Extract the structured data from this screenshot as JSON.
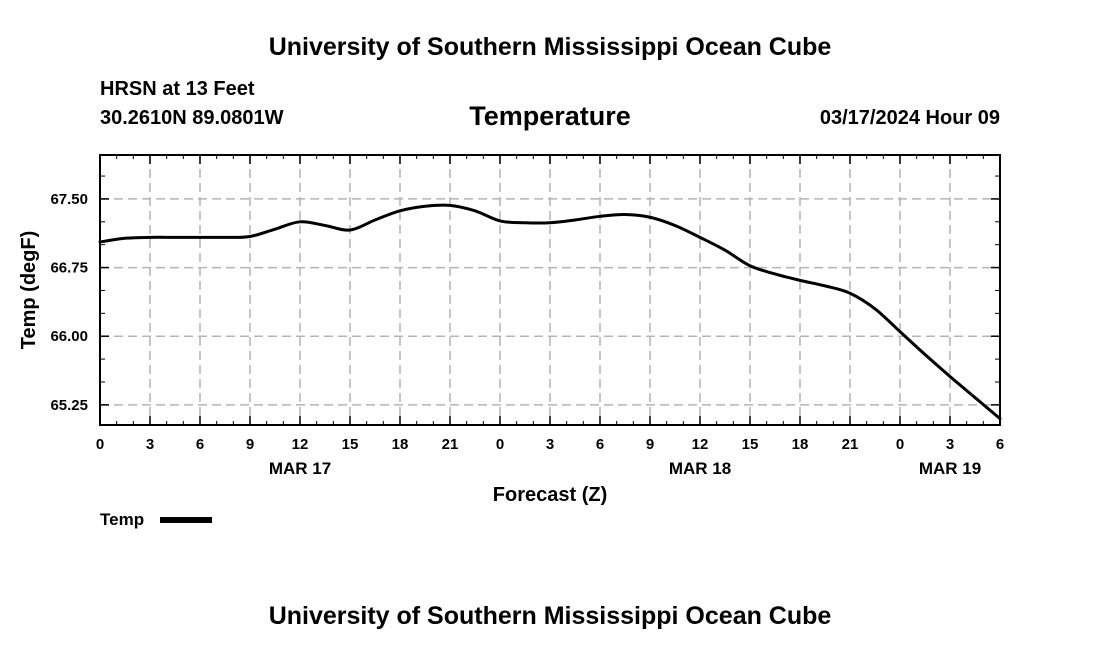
{
  "colors": {
    "background": "#ffffff",
    "line": "#000000",
    "grid": "#b4b4b4",
    "text": "#000000"
  },
  "header": {
    "title": "University of Southern Mississippi Ocean Cube",
    "station": "HRSN at 13 Feet",
    "coords": "30.2610N  89.0801W",
    "variable": "Temperature",
    "datetime": "03/17/2024 Hour 09"
  },
  "footer": {
    "title": "University of Southern Mississippi Ocean Cube"
  },
  "chart_data": {
    "type": "line",
    "title": "Temperature",
    "xlabel": "Forecast (Z)",
    "ylabel": "Temp (degF)",
    "xlim": [
      0,
      54
    ],
    "ylim": [
      65.03,
      67.98
    ],
    "x_ticks": [
      0,
      3,
      6,
      9,
      12,
      15,
      18,
      21,
      24,
      27,
      30,
      33,
      36,
      39,
      42,
      45,
      48,
      51,
      54
    ],
    "x_tick_labels": [
      "0",
      "3",
      "6",
      "9",
      "12",
      "15",
      "18",
      "21",
      "0",
      "3",
      "6",
      "9",
      "12",
      "15",
      "18",
      "21",
      "0",
      "3",
      "6"
    ],
    "y_ticks": [
      65.25,
      66.0,
      66.75,
      67.5
    ],
    "y_tick_labels": [
      "65.25",
      "66.00",
      "66.75",
      "67.50"
    ],
    "date_labels": [
      {
        "x": 12,
        "label": "MAR 17"
      },
      {
        "x": 36,
        "label": "MAR 18"
      },
      {
        "x": 51,
        "label": "MAR 19"
      }
    ],
    "grid": true,
    "legend": {
      "position": "bottom-left",
      "entries": [
        "Temp"
      ]
    },
    "series": [
      {
        "name": "Temp",
        "x": [
          0,
          1.5,
          3,
          4.5,
          6,
          7.5,
          9,
          10.5,
          12,
          13.5,
          15,
          16.5,
          18,
          19.5,
          21,
          22.5,
          24,
          25.5,
          27,
          28.5,
          30,
          31.5,
          33,
          34.5,
          36,
          37.5,
          39,
          40.5,
          42,
          43.5,
          45,
          46.5,
          48,
          49.5,
          51,
          52.5,
          54
        ],
        "values": [
          67.03,
          67.07,
          67.08,
          67.08,
          67.08,
          67.08,
          67.09,
          67.17,
          67.25,
          67.21,
          67.16,
          67.27,
          67.37,
          67.42,
          67.43,
          67.37,
          67.26,
          67.24,
          67.24,
          67.27,
          67.31,
          67.33,
          67.3,
          67.21,
          67.08,
          66.94,
          66.77,
          66.68,
          66.61,
          66.55,
          66.47,
          66.3,
          66.05,
          65.8,
          65.56,
          65.33,
          65.1
        ]
      }
    ]
  }
}
